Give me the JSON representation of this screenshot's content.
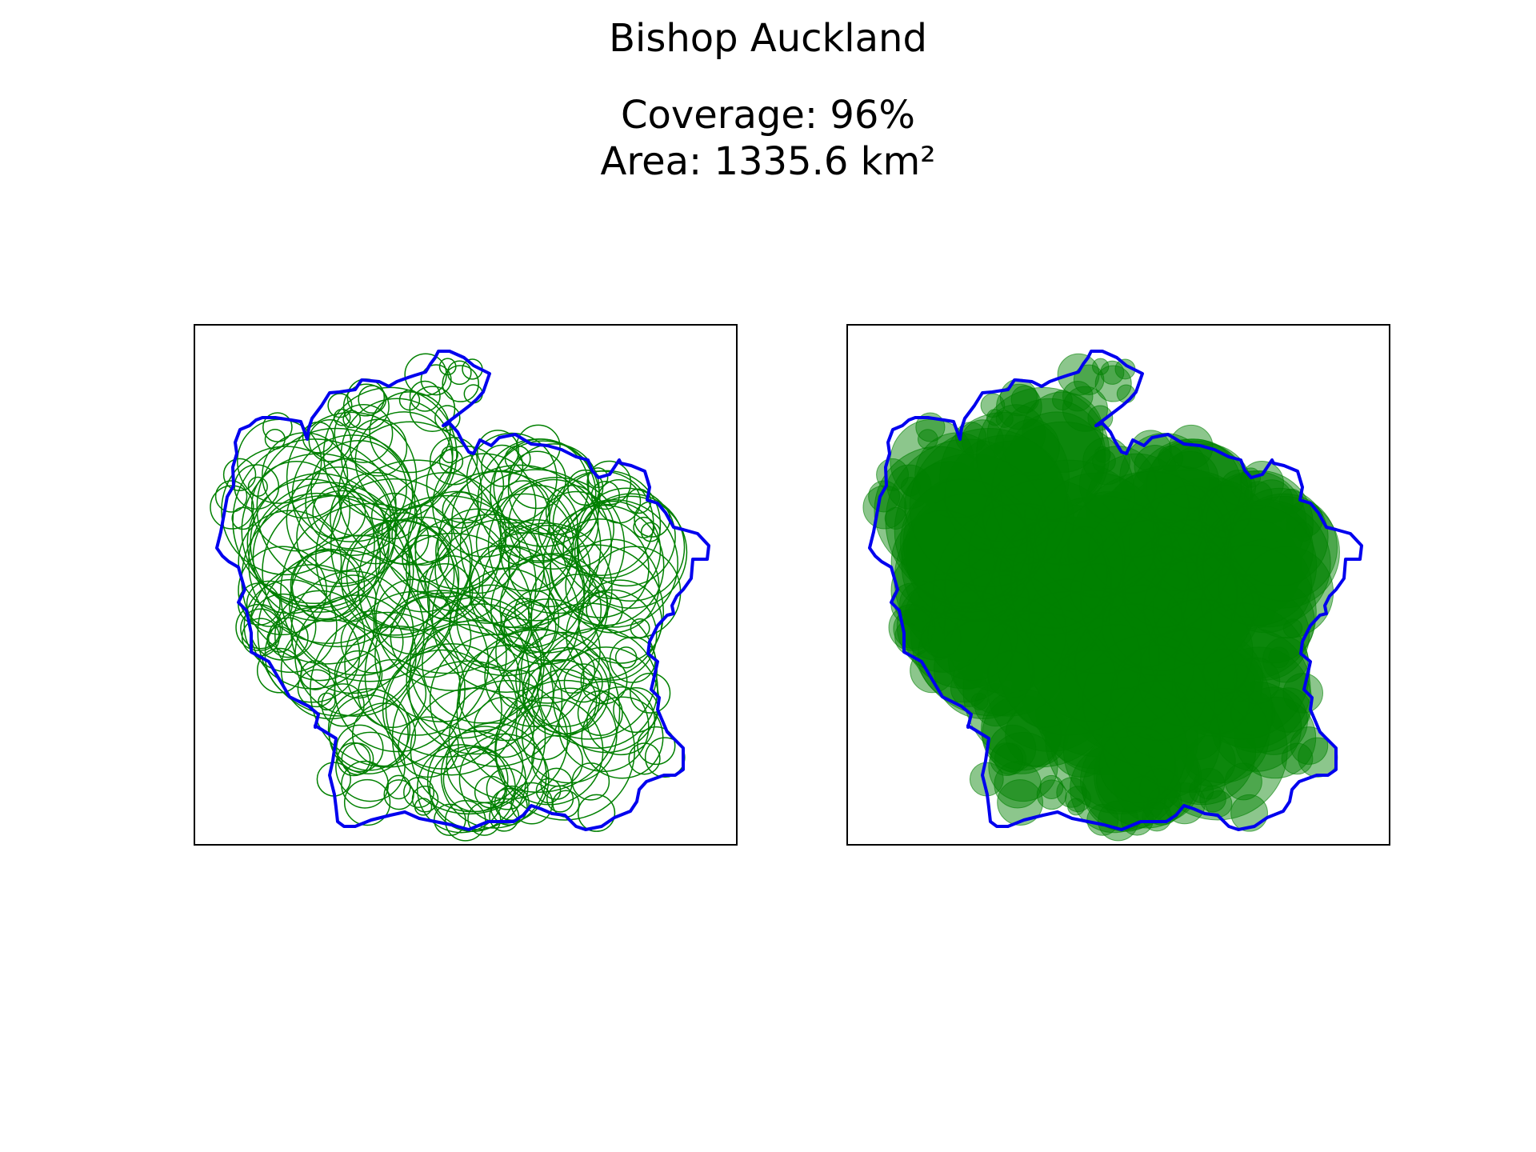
{
  "figure": {
    "title": "Bishop Auckland",
    "coverage_line": "Coverage: 96%",
    "area_line": "Area: 1335.6 km²"
  },
  "colors": {
    "boundary": "#0000ee",
    "circles": "#008000",
    "frame": "#000000"
  },
  "panels": [
    {
      "name": "outline-circles-panel",
      "style": "unfilled circles"
    },
    {
      "name": "filled-circles-panel",
      "style": "semi-transparent filled circles"
    }
  ]
}
